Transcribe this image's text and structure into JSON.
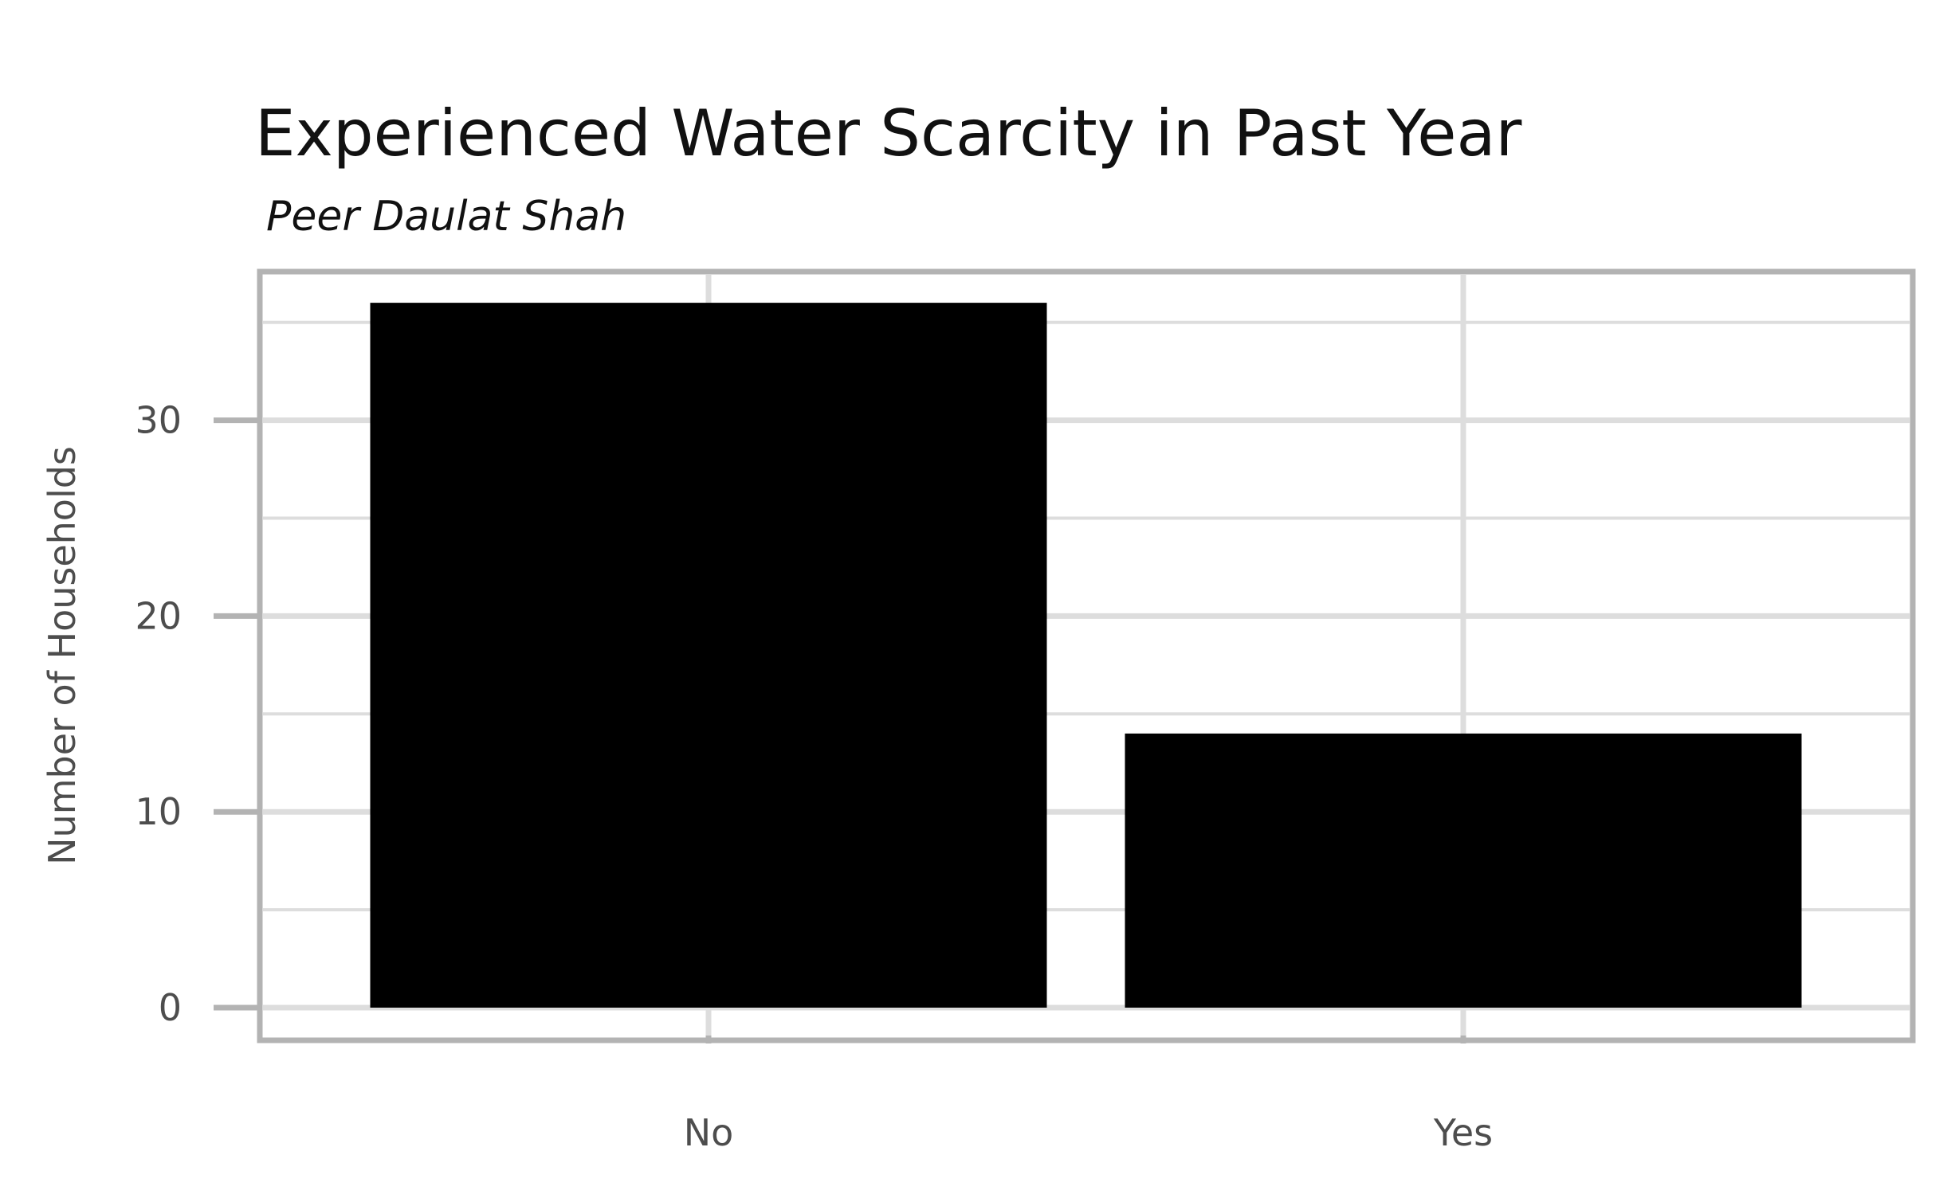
{
  "chart_data": {
    "type": "bar",
    "title": "Experienced Water Scarcity in Past Year",
    "subtitle": "Peer Daulat Shah",
    "xlabel": "",
    "ylabel": "Number of Households",
    "categories": [
      "No",
      "Yes"
    ],
    "values": [
      36,
      14
    ],
    "ylim": [
      0,
      38
    ],
    "yticks": [
      0,
      10,
      20,
      30
    ],
    "ytick_labels": [
      "0",
      "10",
      "20",
      "30"
    ],
    "grid": true,
    "legend": "none",
    "bar_color": "#000000",
    "grid_color": "#dddddd",
    "frame_color": "#b3b3b3"
  }
}
